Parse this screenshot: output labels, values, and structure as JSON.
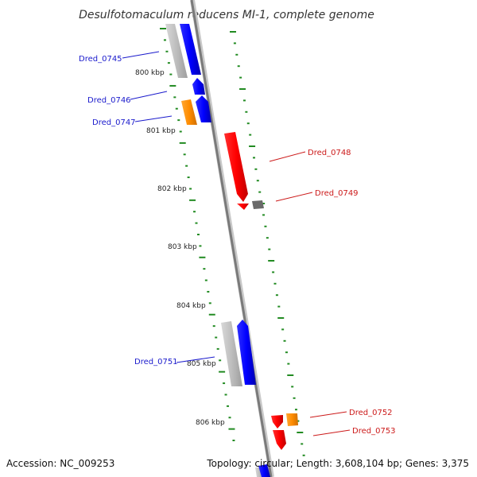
{
  "title": "Desulfotomaculum reducens MI-1, complete genome",
  "footer": {
    "accession": "Accession: NC_009253",
    "topology": "Topology: circular; Length: 3,608,104 bp; Genes: 3,375"
  },
  "scale_ticks": [
    "800 kbp",
    "801 kbp",
    "802 kbp",
    "803 kbp",
    "804 kbp",
    "805 kbp",
    "806 kbp"
  ],
  "genes": [
    {
      "label": "Dred_0745",
      "strand": "reverse",
      "color": "#1a1acc"
    },
    {
      "label": "Dred_0746",
      "strand": "reverse",
      "color": "#1a1acc"
    },
    {
      "label": "Dred_0747",
      "strand": "reverse",
      "color": "#1a1acc"
    },
    {
      "label": "Dred_0748",
      "strand": "forward",
      "color": "#cc1a1a"
    },
    {
      "label": "Dred_0749",
      "strand": "forward",
      "color": "#cc1a1a"
    },
    {
      "label": "Dred_0751",
      "strand": "reverse",
      "color": "#1a1acc"
    },
    {
      "label": "Dred_0752",
      "strand": "forward",
      "color": "#cc1a1a"
    },
    {
      "label": "Dred_0753",
      "strand": "forward",
      "color": "#cc1a1a"
    }
  ],
  "colors": {
    "forward_cds": "#ff0000",
    "reverse_cds": "#0000ff",
    "cog_orange": "#ff8c00",
    "rna_gray": "#bdbdbd",
    "other_gray": "#666666",
    "ticks": "#228b22",
    "backbone": "#888888"
  }
}
